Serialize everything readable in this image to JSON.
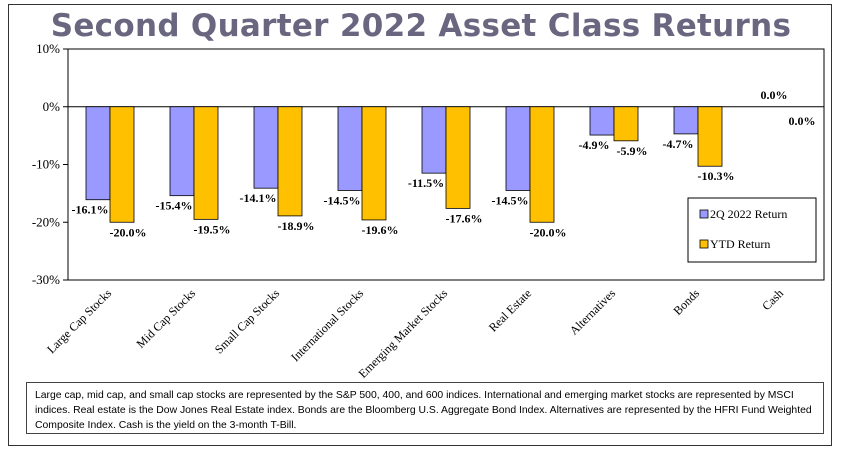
{
  "title": "Second Quarter 2022 Asset Class Returns",
  "colors": {
    "series1": "#9999ff",
    "series2": "#ffc000",
    "title": "#6b6680"
  },
  "chart_data": {
    "type": "bar",
    "categories": [
      "Large Cap Stocks",
      "Mid Cap Stocks",
      "Small Cap Stocks",
      "International Stocks",
      "Emerging Market Stocks",
      "Real Estate",
      "Alternatives",
      "Bonds",
      "Cash"
    ],
    "series": [
      {
        "name": "2Q 2022 Return",
        "values": [
          -16.1,
          -15.4,
          -14.1,
          -14.5,
          -11.5,
          -14.5,
          -4.9,
          -4.7,
          0.0
        ],
        "labels": [
          "-16.1%",
          "-15.4%",
          "-14.1%",
          "-14.5%",
          "-11.5%",
          "-14.5%",
          "-4.9%",
          "-4.7%",
          "0.0%"
        ]
      },
      {
        "name": "YTD Return",
        "values": [
          -20.0,
          -19.5,
          -18.9,
          -19.6,
          -17.6,
          -20.0,
          -5.9,
          -10.3,
          0.0
        ],
        "labels": [
          "-20.0%",
          "-19.5%",
          "-18.9%",
          "-19.6%",
          "-17.6%",
          "-20.0%",
          "-5.9%",
          "-10.3%",
          "0.0%"
        ]
      }
    ],
    "yticks": [
      10,
      0,
      -10,
      -20,
      -30
    ],
    "ytick_labels": [
      "10%",
      "0%",
      "-10%",
      "-20%",
      "-30%"
    ],
    "ylim": [
      -30,
      10
    ],
    "legend": [
      "2Q 2022 Return",
      "YTD Return"
    ],
    "legend_position": "right"
  },
  "footnote": "Large cap, mid cap, and small cap stocks are represented by the S&P 500, 400, and 600 indices.  International and emerging market stocks are represented by MSCI indices.  Real estate is the Dow Jones Real Estate index.  Bonds are the Bloomberg U.S. Aggregate Bond Index.  Alternatives are represented by the HFRI Fund Weighted Composite Index.  Cash is the yield on the 3-month T-Bill."
}
